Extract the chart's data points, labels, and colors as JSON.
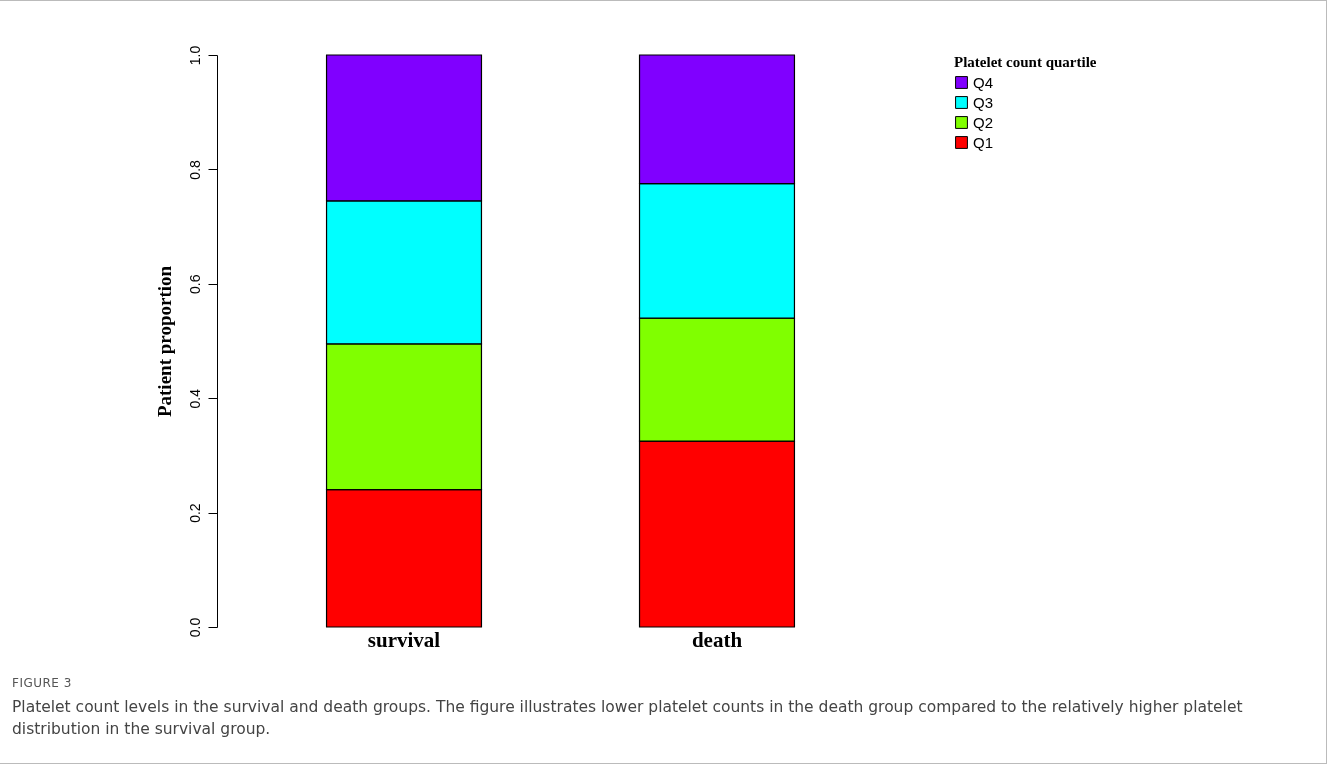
{
  "chart_data": {
    "type": "bar",
    "stacked": true,
    "categories": [
      "survival",
      "death"
    ],
    "series": [
      {
        "name": "Q1",
        "color": "#ff0000",
        "values": [
          0.24,
          0.325
        ]
      },
      {
        "name": "Q2",
        "color": "#80ff00",
        "values": [
          0.255,
          0.215
        ]
      },
      {
        "name": "Q3",
        "color": "#00ffff",
        "values": [
          0.25,
          0.235
        ]
      },
      {
        "name": "Q4",
        "color": "#8000ff",
        "values": [
          0.255,
          0.225
        ]
      }
    ],
    "ylabel": "Patient proportion",
    "legend_title": "Platelet count quartile",
    "legend": "top right",
    "ylim": [
      0,
      1
    ],
    "yticks": [
      {
        "value": 0,
        "label": "0.0"
      },
      {
        "value": 0.2,
        "label": "0.2"
      },
      {
        "value": 0.4,
        "label": "0.4"
      },
      {
        "value": 0.6,
        "label": "0.6"
      },
      {
        "value": 0.8,
        "label": "0.8"
      },
      {
        "value": 1,
        "label": "1.0"
      }
    ],
    "annotations": [
      "FIGURE 3",
      "Platelet count levels in the survival and death groups. The figure illustrates lower platelet counts in the death group compared to the relatively higher platelet distribution in the survival group."
    ]
  }
}
